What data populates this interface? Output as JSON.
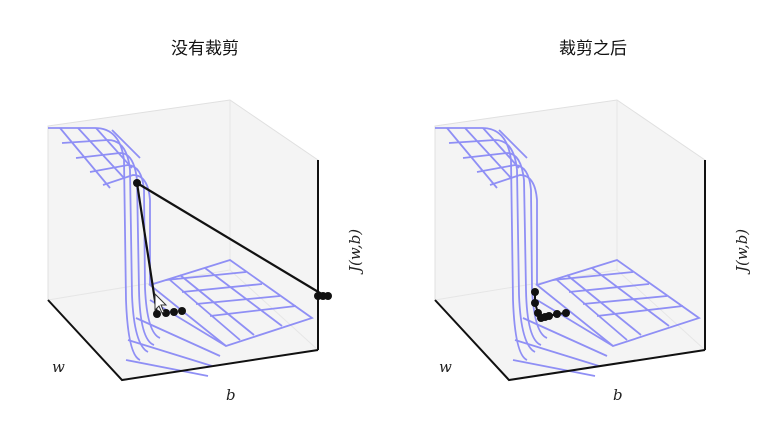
{
  "titles": {
    "left": "没有裁剪",
    "right": "裁剪之后"
  },
  "axes": {
    "w": "w",
    "b": "b",
    "z": "J(w,b)"
  },
  "colors": {
    "surface": "#8f8ff5",
    "pane": "#f2f2f2",
    "pane_edge": "#dcdcdc",
    "frame": "#111111",
    "trajectory": "#111111"
  }
}
